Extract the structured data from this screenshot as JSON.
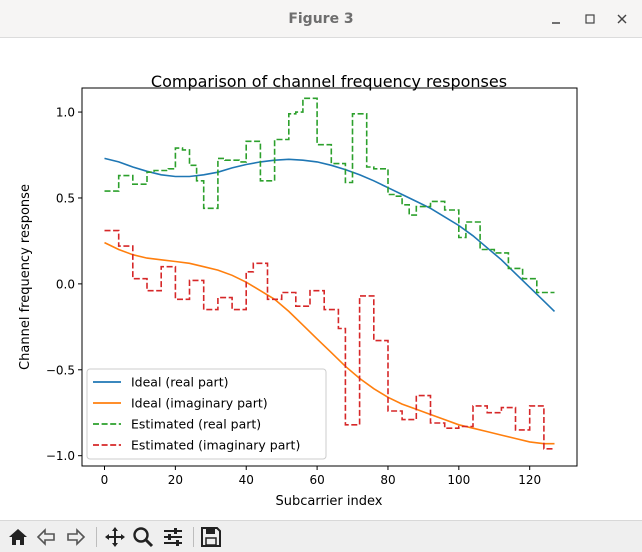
{
  "window": {
    "title": "Figure 3",
    "controls": [
      "minimize-icon",
      "maximize-icon",
      "close-icon"
    ]
  },
  "toolbar": {
    "buttons": [
      "home-icon",
      "back-arrow-icon",
      "forward-arrow-icon",
      "pan-icon",
      "zoom-icon",
      "configure-subplots-icon",
      "save-icon"
    ]
  },
  "chart_data": {
    "type": "line",
    "title": "Comparison of channel frequency responses",
    "xlabel": "Subcarrier index",
    "ylabel": "Channel frequency response",
    "xlim": [
      -6.35,
      133.35
    ],
    "ylim": [
      -1.06,
      1.14
    ],
    "xticks": [
      0,
      20,
      40,
      60,
      80,
      100,
      120
    ],
    "xtick_labels": [
      "0",
      "20",
      "40",
      "60",
      "80",
      "100",
      "120"
    ],
    "yticks": [
      -1.0,
      -0.5,
      0.0,
      0.5,
      1.0
    ],
    "ytick_labels": [
      "−1.0",
      "−0.5",
      "0.0",
      "0.5",
      "1.0"
    ],
    "grid": false,
    "legend_position": "lower-left",
    "series": [
      {
        "name": "Ideal (real part)",
        "color": "#1f77b4",
        "style": "solid",
        "step": false,
        "x": [
          0,
          4,
          8,
          12,
          16,
          20,
          24,
          28,
          32,
          36,
          40,
          44,
          48,
          52,
          56,
          60,
          64,
          68,
          72,
          76,
          80,
          84,
          88,
          92,
          96,
          100,
          104,
          108,
          112,
          116,
          120,
          124,
          127
        ],
        "y": [
          0.73,
          0.71,
          0.68,
          0.655,
          0.635,
          0.625,
          0.625,
          0.635,
          0.65,
          0.675,
          0.695,
          0.71,
          0.72,
          0.725,
          0.72,
          0.71,
          0.69,
          0.665,
          0.635,
          0.6,
          0.56,
          0.52,
          0.48,
          0.44,
          0.39,
          0.34,
          0.28,
          0.21,
          0.14,
          0.06,
          -0.02,
          -0.1,
          -0.16
        ]
      },
      {
        "name": "Ideal (imaginary part)",
        "color": "#ff7f0e",
        "style": "solid",
        "step": false,
        "x": [
          0,
          4,
          8,
          12,
          16,
          20,
          24,
          28,
          32,
          36,
          40,
          44,
          48,
          52,
          56,
          60,
          64,
          68,
          72,
          76,
          80,
          84,
          88,
          92,
          96,
          100,
          104,
          108,
          112,
          116,
          120,
          124,
          127
        ],
        "y": [
          0.24,
          0.2,
          0.17,
          0.15,
          0.14,
          0.13,
          0.12,
          0.1,
          0.08,
          0.05,
          0.01,
          -0.04,
          -0.09,
          -0.16,
          -0.24,
          -0.32,
          -0.4,
          -0.48,
          -0.55,
          -0.61,
          -0.66,
          -0.7,
          -0.73,
          -0.76,
          -0.79,
          -0.82,
          -0.84,
          -0.86,
          -0.88,
          -0.9,
          -0.92,
          -0.93,
          -0.93
        ]
      },
      {
        "name": "Estimated (real part)",
        "color": "#2ca02c",
        "style": "dashed",
        "step": true,
        "x": [
          0,
          2,
          4,
          6,
          8,
          10,
          12,
          14,
          16,
          18,
          20,
          22,
          24,
          26,
          28,
          30,
          32,
          34,
          36,
          38,
          40,
          42,
          44,
          46,
          48,
          50,
          52,
          54,
          56,
          58,
          60,
          62,
          64,
          66,
          68,
          70,
          72,
          74,
          76,
          78,
          80,
          82,
          84,
          86,
          88,
          90,
          92,
          94,
          96,
          98,
          100,
          102,
          104,
          106,
          108,
          110,
          112,
          114,
          116,
          118,
          120,
          122,
          124,
          126,
          127
        ],
        "y": [
          0.54,
          0.54,
          0.63,
          0.63,
          0.58,
          0.58,
          0.65,
          0.66,
          0.66,
          0.67,
          0.79,
          0.78,
          0.69,
          0.6,
          0.44,
          0.44,
          0.73,
          0.72,
          0.72,
          0.71,
          0.83,
          0.83,
          0.6,
          0.6,
          0.84,
          0.84,
          0.99,
          1.0,
          1.08,
          1.08,
          0.81,
          0.81,
          0.7,
          0.7,
          0.59,
          0.99,
          0.99,
          0.68,
          0.67,
          0.67,
          0.52,
          0.51,
          0.46,
          0.4,
          0.45,
          0.45,
          0.48,
          0.48,
          0.43,
          0.43,
          0.27,
          0.36,
          0.36,
          0.2,
          0.2,
          0.18,
          0.18,
          0.09,
          0.09,
          0.03,
          0.03,
          -0.05,
          -0.05,
          -0.05,
          -0.05
        ]
      },
      {
        "name": "Estimated (imaginary part)",
        "color": "#d62728",
        "style": "dashed",
        "step": true,
        "x": [
          0,
          2,
          4,
          6,
          8,
          10,
          12,
          14,
          16,
          18,
          20,
          22,
          24,
          26,
          28,
          30,
          32,
          34,
          36,
          38,
          40,
          42,
          44,
          46,
          48,
          50,
          52,
          54,
          56,
          58,
          60,
          62,
          64,
          66,
          68,
          70,
          72,
          74,
          76,
          78,
          80,
          82,
          84,
          86,
          88,
          90,
          92,
          94,
          96,
          98,
          100,
          102,
          104,
          106,
          108,
          110,
          112,
          114,
          116,
          118,
          120,
          122,
          124,
          126,
          127
        ],
        "y": [
          0.31,
          0.31,
          0.22,
          0.22,
          0.03,
          0.03,
          -0.04,
          -0.04,
          0.1,
          0.1,
          -0.09,
          -0.09,
          0.02,
          0.02,
          -0.15,
          -0.15,
          -0.08,
          -0.08,
          -0.15,
          -0.15,
          0.07,
          0.12,
          0.12,
          -0.09,
          -0.09,
          -0.05,
          -0.05,
          -0.13,
          -0.13,
          -0.04,
          -0.04,
          -0.15,
          -0.15,
          -0.26,
          -0.82,
          -0.82,
          -0.07,
          -0.07,
          -0.33,
          -0.33,
          -0.74,
          -0.74,
          -0.79,
          -0.79,
          -0.65,
          -0.65,
          -0.81,
          -0.81,
          -0.84,
          -0.84,
          -0.83,
          -0.83,
          -0.71,
          -0.71,
          -0.75,
          -0.75,
          -0.72,
          -0.72,
          -0.85,
          -0.85,
          -0.71,
          -0.71,
          -0.96,
          -0.96,
          -0.96
        ]
      }
    ]
  }
}
